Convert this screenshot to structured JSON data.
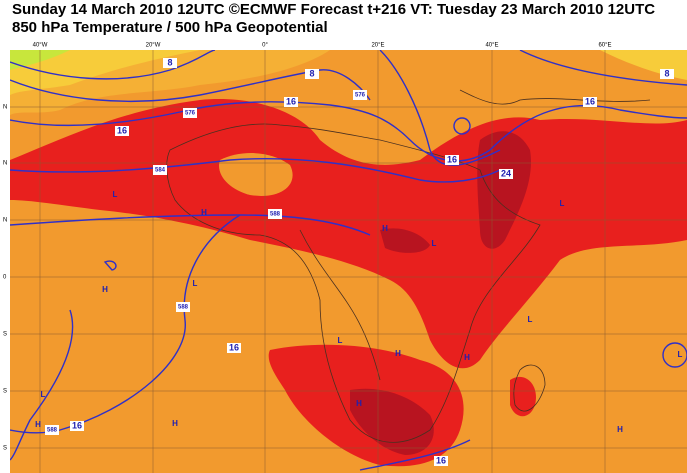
{
  "header": {
    "title": "Sunday 14 March 2010 12UTC ©ECMWF Forecast t+216 VT: Tuesday 23 March 2010 12UTC",
    "subtitle": "850 hPa Temperature / 500 hPa Geopotential"
  },
  "map": {
    "lon_labels": [
      "40°W",
      "20°W",
      "0°",
      "20°E",
      "40°E",
      "60°E"
    ],
    "lat_labels": [
      "N",
      "N",
      "N",
      "0",
      "S",
      "S",
      "S"
    ],
    "contour_labels": [
      "8",
      "8",
      "576",
      "16",
      "16",
      "576",
      "16",
      "8",
      "16",
      "24",
      "584",
      "588",
      "588",
      "16",
      "16",
      "588",
      "16"
    ],
    "pressure_labels": [
      "L",
      "H",
      "H",
      "L",
      "H",
      "L",
      "L",
      "H",
      "H",
      "L",
      "L",
      "L",
      "L",
      "H",
      "H",
      "H",
      "H"
    ]
  }
}
